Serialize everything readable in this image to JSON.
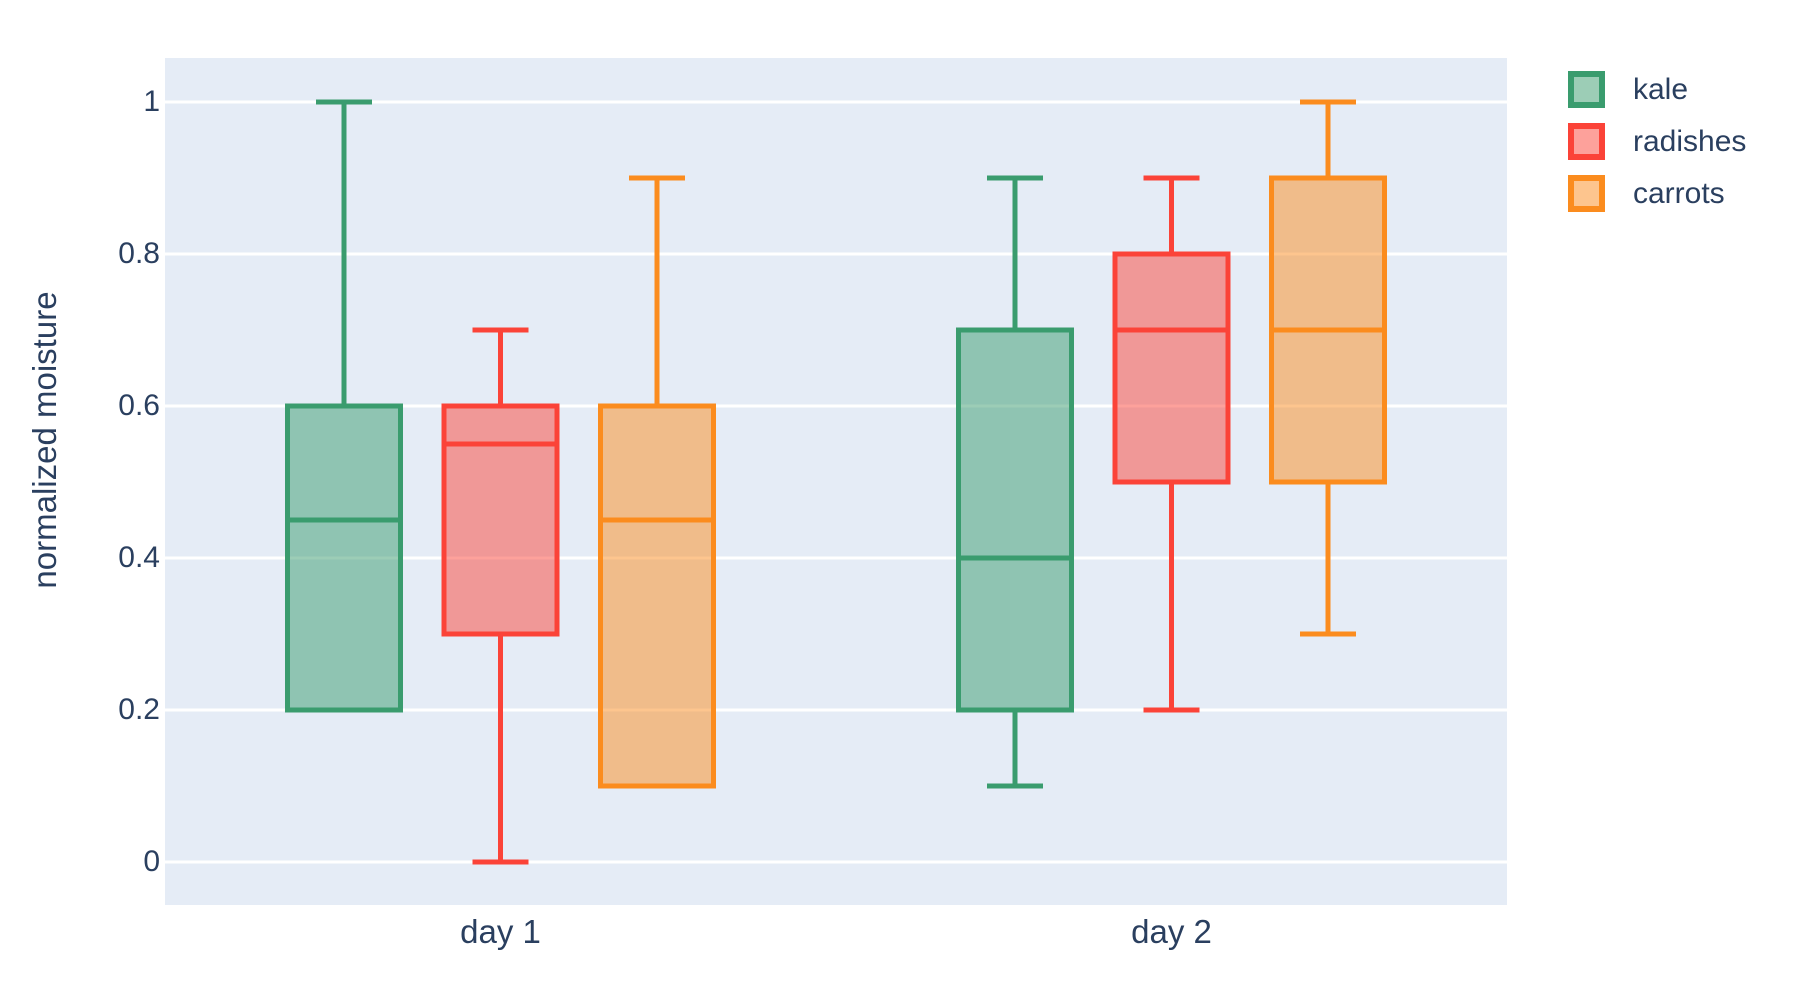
{
  "chart_data": {
    "type": "box",
    "title": "",
    "xlabel": "",
    "ylabel": "normalized moisture",
    "categories": [
      "day 1",
      "day 2"
    ],
    "ylim": [
      0,
      1
    ],
    "yticks": {
      "values": [
        0,
        0.2,
        0.4,
        0.6,
        0.8,
        1
      ],
      "labels": [
        "0",
        "0.2",
        "0.4",
        "0.6",
        "0.8",
        "1"
      ]
    },
    "grid": true,
    "plot_background": "#e5ecf6",
    "gridline_color": "#ffffff",
    "text_color": "#2a3f5f",
    "legend_position": "outside-top-right",
    "series": [
      {
        "name": "kale",
        "color": "#3a9c6e",
        "boxes": [
          {
            "group": "day 1",
            "min": 0.2,
            "q1": 0.2,
            "median": 0.45,
            "q3": 0.6,
            "max": 1.0
          },
          {
            "group": "day 2",
            "min": 0.1,
            "q1": 0.2,
            "median": 0.4,
            "q3": 0.7,
            "max": 0.9
          }
        ]
      },
      {
        "name": "radishes",
        "color": "#fb4338",
        "boxes": [
          {
            "group": "day 1",
            "min": 0.0,
            "q1": 0.3,
            "median": 0.55,
            "q3": 0.6,
            "max": 0.7
          },
          {
            "group": "day 2",
            "min": 0.2,
            "q1": 0.5,
            "median": 0.7,
            "q3": 0.8,
            "max": 0.9
          }
        ]
      },
      {
        "name": "carrots",
        "color": "#fb8c1e",
        "boxes": [
          {
            "group": "day 1",
            "min": 0.1,
            "q1": 0.1,
            "median": 0.45,
            "q3": 0.6,
            "max": 0.9
          },
          {
            "group": "day 2",
            "min": 0.3,
            "q1": 0.5,
            "median": 0.7,
            "q3": 0.9,
            "max": 1.0
          }
        ]
      }
    ]
  }
}
